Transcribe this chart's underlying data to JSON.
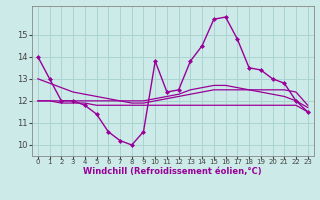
{
  "xlabel": "Windchill (Refroidissement éolien,°C)",
  "background_color": "#cceae7",
  "grid_color": "#aad4d0",
  "line_color": "#990099",
  "hours": [
    0,
    1,
    2,
    3,
    4,
    5,
    6,
    7,
    8,
    9,
    10,
    11,
    12,
    13,
    14,
    15,
    16,
    17,
    18,
    19,
    20,
    21,
    22,
    23
  ],
  "windchill": [
    14.0,
    13.0,
    12.0,
    12.0,
    11.8,
    11.4,
    10.6,
    10.2,
    10.0,
    10.6,
    13.8,
    12.4,
    12.5,
    13.8,
    14.5,
    15.7,
    15.8,
    14.8,
    13.5,
    13.4,
    13.0,
    12.8,
    12.0,
    11.5
  ],
  "temp_line1": [
    13.0,
    12.8,
    12.6,
    12.4,
    12.3,
    12.2,
    12.1,
    12.0,
    11.9,
    11.9,
    12.0,
    12.1,
    12.2,
    12.3,
    12.4,
    12.5,
    12.5,
    12.5,
    12.5,
    12.5,
    12.5,
    12.5,
    12.4,
    11.8
  ],
  "temp_line2": [
    12.0,
    12.0,
    12.0,
    12.0,
    12.0,
    12.0,
    12.0,
    12.0,
    12.0,
    12.0,
    12.1,
    12.2,
    12.3,
    12.5,
    12.6,
    12.7,
    12.7,
    12.6,
    12.5,
    12.4,
    12.3,
    12.2,
    12.0,
    11.7
  ],
  "temp_line3": [
    12.0,
    12.0,
    11.9,
    11.9,
    11.9,
    11.8,
    11.8,
    11.8,
    11.8,
    11.8,
    11.8,
    11.8,
    11.8,
    11.8,
    11.8,
    11.8,
    11.8,
    11.8,
    11.8,
    11.8,
    11.8,
    11.8,
    11.8,
    11.5
  ],
  "ylim": [
    9.5,
    16.3
  ],
  "yticks": [
    10,
    11,
    12,
    13,
    14,
    15
  ],
  "xlim": [
    -0.5,
    23.5
  ]
}
